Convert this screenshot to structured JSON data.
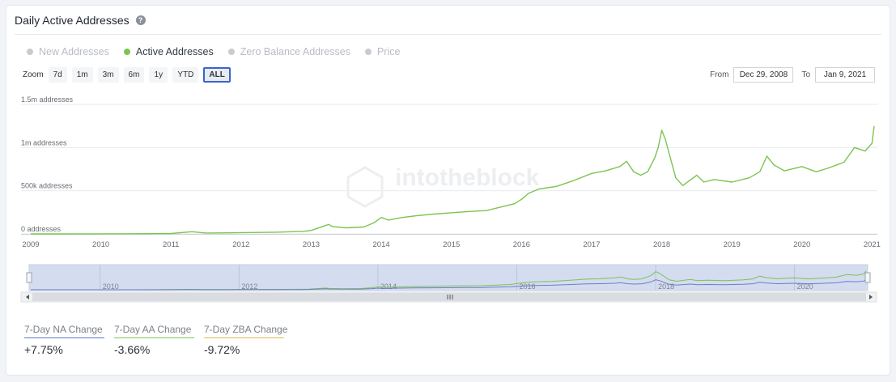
{
  "header": {
    "title": "Daily Active Addresses",
    "help_icon": "?"
  },
  "legend": [
    {
      "label": "New Addresses",
      "color": "#c8cbd0",
      "active": false
    },
    {
      "label": "Active Addresses",
      "color": "#7cc452",
      "active": true
    },
    {
      "label": "Zero Balance Addresses",
      "color": "#c8cbd0",
      "active": false
    },
    {
      "label": "Price",
      "color": "#c8cbd0",
      "active": false
    }
  ],
  "zoom": {
    "label": "Zoom",
    "buttons": [
      "7d",
      "1m",
      "3m",
      "6m",
      "1y",
      "YTD",
      "ALL"
    ],
    "selected": "ALL"
  },
  "range": {
    "from_label": "From",
    "from_value": "Dec 29, 2008",
    "to_label": "To",
    "to_value": "Jan 9, 2021"
  },
  "watermark": "intotheblock",
  "chart_data": {
    "type": "line",
    "title": "Daily Active Addresses",
    "series": [
      {
        "name": "Active Addresses",
        "color": "#7cc452",
        "x": [
          2009.0,
          2009.5,
          2010.0,
          2010.5,
          2011.0,
          2011.3,
          2011.5,
          2011.8,
          2012.0,
          2012.5,
          2012.9,
          2013.0,
          2013.25,
          2013.3,
          2013.5,
          2013.75,
          2013.9,
          2014.0,
          2014.1,
          2014.3,
          2014.5,
          2014.75,
          2015.0,
          2015.25,
          2015.5,
          2015.7,
          2015.9,
          2016.0,
          2016.1,
          2016.25,
          2016.5,
          2016.75,
          2017.0,
          2017.2,
          2017.4,
          2017.5,
          2017.6,
          2017.7,
          2017.8,
          2017.9,
          2017.95,
          2018.0,
          2018.05,
          2018.1,
          2018.2,
          2018.3,
          2018.5,
          2018.6,
          2018.75,
          2019.0,
          2019.25,
          2019.4,
          2019.5,
          2019.6,
          2019.75,
          2020.0,
          2020.2,
          2020.25,
          2020.4,
          2020.5,
          2020.6,
          2020.75,
          2020.9,
          2021.0,
          2021.03
        ],
        "values": [
          0,
          0,
          1000,
          2000,
          5000,
          25000,
          10000,
          12000,
          15000,
          20000,
          30000,
          40000,
          110000,
          85000,
          70000,
          80000,
          130000,
          190000,
          160000,
          190000,
          210000,
          230000,
          245000,
          260000,
          270000,
          310000,
          350000,
          400000,
          470000,
          520000,
          550000,
          620000,
          700000,
          730000,
          780000,
          840000,
          720000,
          680000,
          720000,
          880000,
          1000000,
          1200000,
          1100000,
          950000,
          650000,
          560000,
          680000,
          600000,
          630000,
          600000,
          650000,
          720000,
          900000,
          800000,
          730000,
          780000,
          720000,
          730000,
          770000,
          800000,
          830000,
          1000000,
          960000,
          1050000,
          1250000
        ]
      }
    ],
    "xlabel": "",
    "ylabel": "",
    "xlim": [
      2009,
      2021.03
    ],
    "ylim": [
      0,
      1500000
    ],
    "x_ticks": [
      "2009",
      "2010",
      "2011",
      "2012",
      "2013",
      "2014",
      "2015",
      "2016",
      "2017",
      "2018",
      "2019",
      "2020",
      "2021"
    ],
    "x_tick_values": [
      2009,
      2010,
      2011,
      2012,
      2013,
      2014,
      2015,
      2016,
      2017,
      2018,
      2019,
      2020,
      2021
    ],
    "y_ticks": [
      "0 addresses",
      "500k addresses",
      "1m addresses",
      "1.5m addresses"
    ],
    "y_tick_values": [
      0,
      500000,
      1000000,
      1500000
    ],
    "grid": true,
    "legend_position": "top-left",
    "navigator": {
      "x_ticks": [
        "2010",
        "2012",
        "2014",
        "2016",
        "2018",
        "2020"
      ],
      "x_tick_values": [
        2010,
        2012,
        2014,
        2016,
        2018,
        2020
      ],
      "series_colors": [
        "#7cc452",
        "#6c7fc2"
      ],
      "secondary_ratio": 0.55
    }
  },
  "stats": [
    {
      "label": "7-Day NA Change",
      "value": "+7.75%",
      "color": "#5b78c7"
    },
    {
      "label": "7-Day AA Change",
      "value": "-3.66%",
      "color": "#7cc452"
    },
    {
      "label": "7-Day ZBA Change",
      "value": "-9.72%",
      "color": "#e0b84a"
    }
  ]
}
